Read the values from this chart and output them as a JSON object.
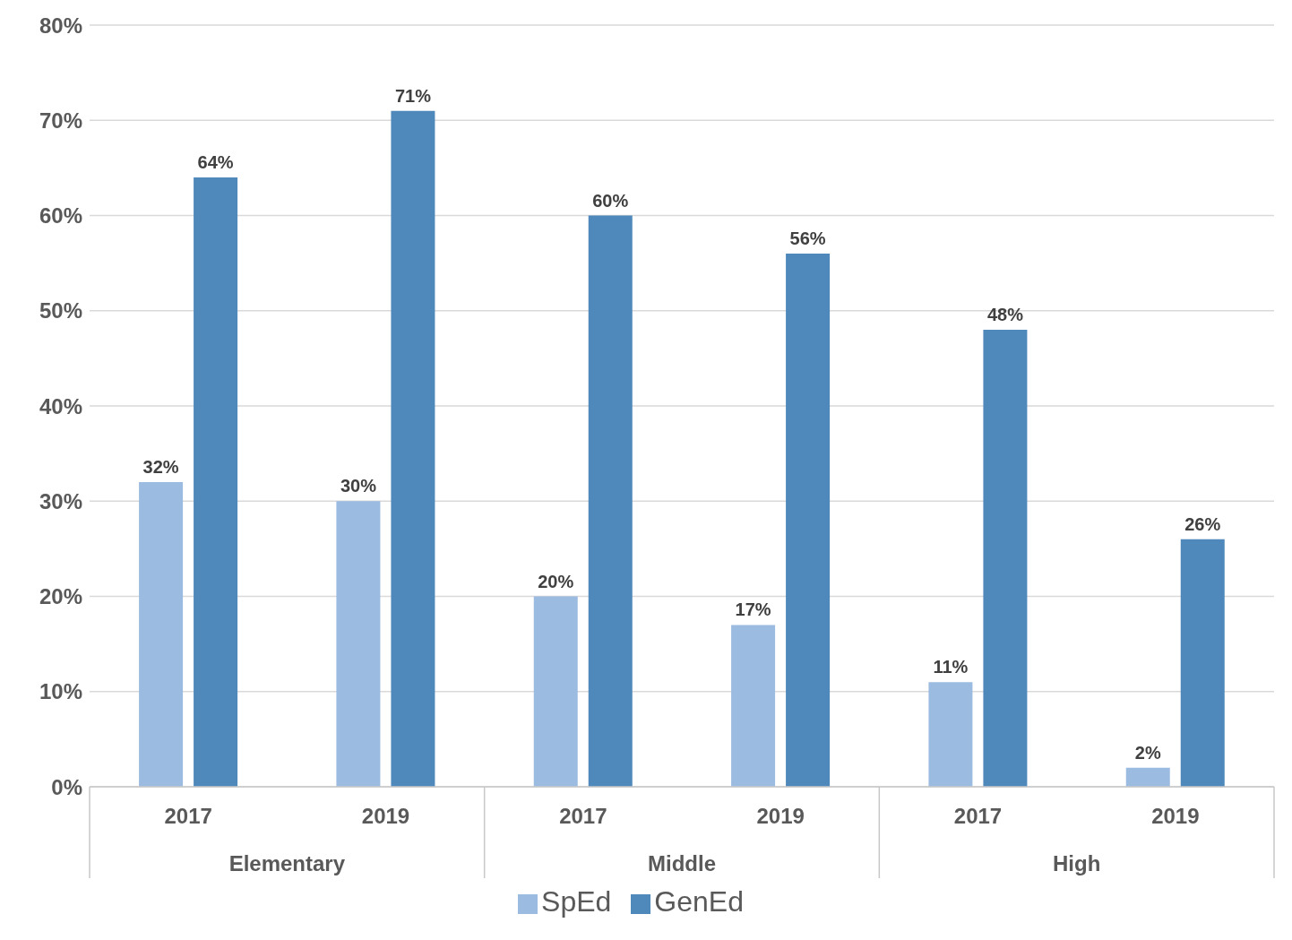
{
  "chart_data": {
    "type": "bar",
    "categories": [
      "2017",
      "2019",
      "2017",
      "2019",
      "2017",
      "2019"
    ],
    "annotations": [
      "Elementary",
      "Middle",
      "High"
    ],
    "series": [
      {
        "name": "SpEd",
        "color": "#9bbbe0",
        "values": [
          32,
          30,
          20,
          17,
          11,
          2
        ],
        "value_labels": [
          "32%",
          "30%",
          "20%",
          "17%",
          "11%",
          "2%"
        ]
      },
      {
        "name": "GenEd",
        "color": "#4f88bb",
        "values": [
          64,
          71,
          60,
          56,
          48,
          26
        ],
        "value_labels": [
          "64%",
          "71%",
          "60%",
          "56%",
          "48%",
          "26%"
        ]
      }
    ],
    "ylim": [
      0,
      80
    ],
    "yticks": [
      {
        "value": 0,
        "label": "0%"
      },
      {
        "value": 10,
        "label": "10%"
      },
      {
        "value": 20,
        "label": "20%"
      },
      {
        "value": 30,
        "label": "30%"
      },
      {
        "value": 40,
        "label": "40%"
      },
      {
        "value": 50,
        "label": "50%"
      },
      {
        "value": 60,
        "label": "60%"
      },
      {
        "value": 70,
        "label": "70%"
      },
      {
        "value": 80,
        "label": "80%"
      }
    ],
    "grid": "y",
    "legend": "bottom"
  }
}
